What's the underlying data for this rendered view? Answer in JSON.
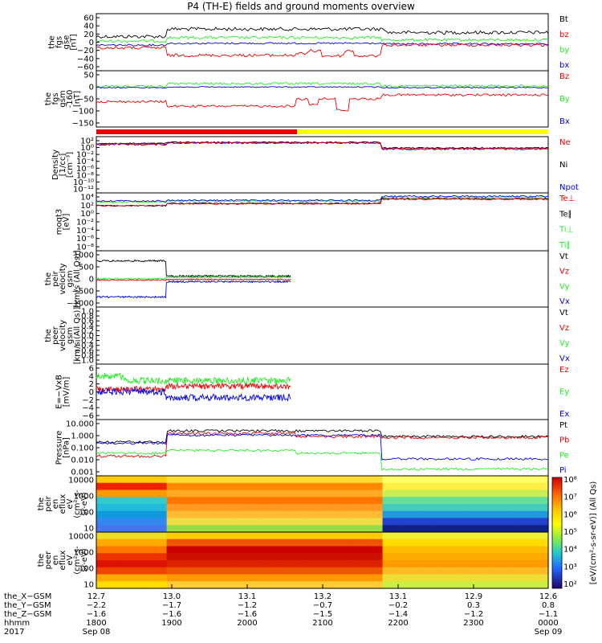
{
  "title": "P4 (TH-E) fields and ground moments overview",
  "colors": {
    "black": "#000000",
    "red": "#ee0000",
    "green": "#22ee22",
    "blue": "#0000ee",
    "yellow": "#ffff00"
  },
  "chart_data": [
    {
      "type": "line",
      "id": "p1",
      "ylabel": [
        "the",
        "fgs",
        "gse",
        "[nT]"
      ],
      "yticks": [
        "60",
        "40",
        "20",
        "0",
        "−20",
        "−40",
        "−60"
      ],
      "ylim": [
        -60,
        60
      ],
      "legend": [
        {
          "name": "Bt",
          "color": "black"
        },
        {
          "name": "bz",
          "color": "red"
        },
        {
          "name": "by",
          "color": "green"
        },
        {
          "name": "bx",
          "color": "blue"
        }
      ]
    },
    {
      "type": "line",
      "id": "p2",
      "ylabel": [
        "the",
        "fgs",
        "gsm",
        "-160",
        "[nT]"
      ],
      "yticks": [
        "50",
        "0",
        "−50",
        "−100",
        "−150"
      ],
      "ylim": [
        -175,
        55
      ],
      "legend": [
        {
          "name": "Bz",
          "color": "red"
        },
        {
          "name": "By",
          "color": "green"
        },
        {
          "name": "Bx",
          "color": "blue"
        }
      ]
    },
    {
      "type": "line",
      "id": "p3",
      "ylabel": [
        "Density",
        "[1/cc]",
        "[cm⁻³]"
      ],
      "yticks": [
        "10²",
        "10⁰",
        "10⁻²",
        "10⁻⁴",
        "10⁻⁶",
        "10⁻⁸",
        "10⁻¹⁰",
        "10⁻¹²"
      ],
      "scale": "log",
      "legend": [
        {
          "name": "Ne",
          "color": "red"
        },
        {
          "name": "Ni",
          "color": "black"
        },
        {
          "name": "Npot",
          "color": "blue"
        }
      ]
    },
    {
      "type": "line",
      "id": "p4",
      "ylabel": [
        "moqt3",
        "[eV]"
      ],
      "yticks": [
        "10⁴",
        "10²",
        "10⁰",
        "10⁻²",
        "10⁻⁴",
        "10⁻⁶",
        "10⁻⁸"
      ],
      "scale": "log",
      "legend": [
        {
          "name": "Te⊥",
          "color": "red"
        },
        {
          "name": "Te∥",
          "color": "black"
        },
        {
          "name": "Ti⊥",
          "color": "green"
        },
        {
          "name": "Ti∥",
          "color": "green"
        }
      ]
    },
    {
      "type": "line",
      "id": "p5",
      "ylabel": [
        "the",
        "peir",
        "velocity",
        "gsm",
        "[km/s (All Qs)]"
      ],
      "yticks": [
        "1000",
        "500",
        "0",
        "−500",
        "−1000"
      ],
      "ylim": [
        -1000,
        1000
      ],
      "legend": [
        {
          "name": "Vt",
          "color": "black"
        },
        {
          "name": "Vz",
          "color": "red"
        },
        {
          "name": "Vy",
          "color": "green"
        },
        {
          "name": "Vx",
          "color": "blue"
        }
      ]
    },
    {
      "type": "line",
      "id": "p6",
      "ylabel": [
        "the",
        "peer",
        "velocity",
        "gsm",
        "[km/s (All Qs)]"
      ],
      "yticks": [
        "1.0",
        "0.8",
        "0.6",
        "0.4",
        "0.2",
        "0.0",
        "−0.2",
        "−0.4",
        "−0.6",
        "−0.8",
        "−1.0"
      ],
      "ylim": [
        -1,
        1
      ],
      "legend": [
        {
          "name": "Vt",
          "color": "black"
        },
        {
          "name": "Vz",
          "color": "red"
        },
        {
          "name": "Vy",
          "color": "green"
        },
        {
          "name": "Vx",
          "color": "blue"
        }
      ]
    },
    {
      "type": "line",
      "id": "p7",
      "ylabel": [
        "E=−VxB",
        "[mV/m]"
      ],
      "yticks": [
        "6",
        "4",
        "2",
        "0",
        "−2",
        "−4",
        "−6"
      ],
      "ylim": [
        -6,
        6
      ],
      "legend": [
        {
          "name": "Ez",
          "color": "red"
        },
        {
          "name": "Ey",
          "color": "green"
        },
        {
          "name": "Ex",
          "color": "blue"
        }
      ]
    },
    {
      "type": "line",
      "id": "p8",
      "ylabel": [
        "Pressure",
        "[nPa]"
      ],
      "yticks": [
        "10.000",
        "1.000",
        "0.100",
        "0.010",
        "0.001"
      ],
      "scale": "log",
      "legend": [
        {
          "name": "Pt",
          "color": "black"
        },
        {
          "name": "Pb",
          "color": "red"
        },
        {
          "name": "Pe",
          "color": "green"
        },
        {
          "name": "Pi",
          "color": "blue"
        }
      ]
    },
    {
      "type": "heatmap",
      "id": "p9",
      "ylabel": [
        "the",
        "peir",
        "en",
        "eflux",
        "eV",
        "(cm²-s-",
        "sr-eV)"
      ],
      "yticks": [
        "10000",
        "1000",
        "100",
        "10"
      ],
      "scale": "log"
    },
    {
      "type": "heatmap",
      "id": "p10",
      "ylabel": [
        "the",
        "peer",
        "en",
        "eflux",
        "eV",
        "(cm²-s-",
        "sr-eV)"
      ],
      "yticks": [
        "10000",
        "1000",
        "100",
        "10"
      ],
      "scale": "log",
      "colorbar": {
        "ticks": [
          "10⁸",
          "10⁷",
          "10⁶",
          "10⁵",
          "10⁴",
          "10³",
          "10²"
        ],
        "label": "[eV/(cm²-s-sr-eV)] (All Qs)"
      }
    }
  ],
  "xaxis": {
    "rows": [
      {
        "label": "the_X−GSM",
        "values": [
          "12.7",
          "13.0",
          "13.1",
          "13.2",
          "13.1",
          "12.9",
          "12.6"
        ]
      },
      {
        "label": "the_Y−GSM",
        "values": [
          "−2.2",
          "−1.7",
          "−1.2",
          "−0.7",
          "−0.2",
          "0.3",
          "0.8"
        ]
      },
      {
        "label": "the_Z−GSM",
        "values": [
          "−1.6",
          "−1.6",
          "−1.6",
          "−1.5",
          "−1.4",
          "−1.2",
          "−1.1"
        ]
      },
      {
        "label": "hhmm",
        "values": [
          "1800",
          "1900",
          "2000",
          "2100",
          "2200",
          "2300",
          "0000"
        ]
      },
      {
        "label": "2017",
        "values": [
          "Sep 08",
          "",
          "",
          "",
          "",
          "",
          "Sep 09"
        ]
      }
    ]
  }
}
